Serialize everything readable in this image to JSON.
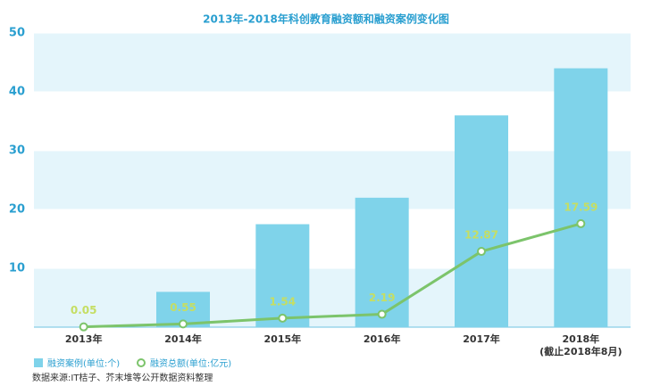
{
  "chart_data": {
    "type": "bar-line",
    "title": "2013年-2018年科创教育融资额和融资案例变化图",
    "categories": [
      "2013年",
      "2014年",
      "2015年",
      "2016年",
      "2017年",
      "2018年\n(截止2018年8月)"
    ],
    "series": [
      {
        "name": "融资案例(单位:个)",
        "type": "bar",
        "color": "#7fd3ea",
        "values": [
          0,
          6,
          17.5,
          22,
          36,
          44
        ]
      },
      {
        "name": "融资总额(单位:亿元)",
        "type": "line",
        "color": "#7cc46b",
        "values": [
          0.05,
          0.55,
          1.54,
          2.19,
          12.87,
          17.59
        ]
      }
    ],
    "ylim": [
      0,
      50
    ],
    "yticks": [
      10,
      20,
      30,
      40,
      50
    ],
    "grid": true,
    "source": "数据来源:IT桔子、芥末堆等公开数据资料整理"
  }
}
